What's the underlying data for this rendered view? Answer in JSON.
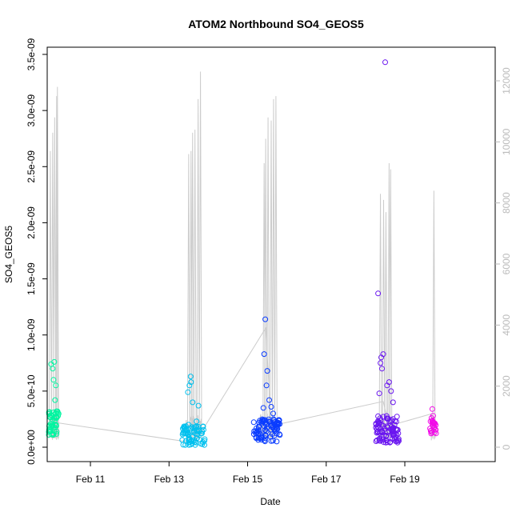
{
  "chart_data": {
    "type": "scatter",
    "title": "ATOM2 Northbound SO4_GEOS5",
    "xlabel": "Date",
    "ylabel": "SO4_GEOS5",
    "x_unit": "day of February",
    "xlim": [
      9.9,
      21.3
    ],
    "ylim": [
      0,
      3.6e-09
    ],
    "y2lim": [
      0,
      12800
    ],
    "x_ticks": [
      {
        "value": 11,
        "label": "Feb 11"
      },
      {
        "value": 13,
        "label": "Feb 13"
      },
      {
        "value": 15,
        "label": "Feb 15"
      },
      {
        "value": 17,
        "label": "Feb 17"
      },
      {
        "value": 19,
        "label": "Feb 19"
      }
    ],
    "y_ticks": [
      {
        "value": 0,
        "label": "0.0e+00"
      },
      {
        "value": 5e-10,
        "label": "5.0e-10"
      },
      {
        "value": 1e-09,
        "label": "1.0e-09"
      },
      {
        "value": 1.5e-09,
        "label": "1.5e-09"
      },
      {
        "value": 2e-09,
        "label": "2.0e-09"
      },
      {
        "value": 2.5e-09,
        "label": "2.5e-09"
      },
      {
        "value": 3e-09,
        "label": "3.0e-09"
      },
      {
        "value": 3.5e-09,
        "label": "3.5e-09"
      }
    ],
    "y2_ticks": [
      {
        "value": 0,
        "label": "0"
      },
      {
        "value": 2000,
        "label": "2000"
      },
      {
        "value": 4000,
        "label": "4000"
      },
      {
        "value": 6000,
        "label": "6000"
      },
      {
        "value": 8000,
        "label": "8000"
      },
      {
        "value": 10000,
        "label": "10000"
      },
      {
        "value": 12000,
        "label": "12000"
      }
    ],
    "altitude_color": "#cccccc",
    "clusters": [
      {
        "center": 10.08,
        "spread": 0.14,
        "color": "#00f5a0",
        "n": 48,
        "base": 2.2e-10,
        "var": 1.2e-10,
        "extra": [
          [
            10.0,
            7.4e-10
          ],
          [
            10.04,
            7e-10
          ],
          [
            10.08,
            7.6e-10
          ],
          [
            10.06,
            6e-10
          ],
          [
            10.12,
            5.5e-10
          ],
          [
            10.1,
            4.2e-10
          ],
          [
            10.14,
            3.2e-10
          ]
        ]
      },
      {
        "center": 13.62,
        "spread": 0.3,
        "color": "#00c0ee",
        "n": 72,
        "base": 1e-10,
        "var": 9e-11,
        "extra": [
          [
            13.55,
            6.3e-10
          ],
          [
            13.56,
            5.8e-10
          ],
          [
            13.52,
            5.5e-10
          ],
          [
            13.48,
            4.9e-10
          ],
          [
            13.6,
            4e-10
          ],
          [
            13.75,
            3.7e-10
          ],
          [
            13.7,
            2.3e-10
          ],
          [
            13.5,
            2e-10
          ]
        ]
      },
      {
        "center": 15.5,
        "spread": 0.35,
        "color": "#0a3cff",
        "n": 90,
        "base": 1.5e-10,
        "var": 1e-10,
        "extra": [
          [
            15.45,
            1.14e-09
          ],
          [
            15.42,
            8.3e-10
          ],
          [
            15.5,
            6.8e-10
          ],
          [
            15.48,
            5.5e-10
          ],
          [
            15.55,
            4.2e-10
          ],
          [
            15.6,
            3.6e-10
          ],
          [
            15.4,
            3.5e-10
          ],
          [
            15.65,
            3e-10
          ]
        ]
      },
      {
        "center": 18.55,
        "spread": 0.3,
        "color": "#6a16f0",
        "n": 95,
        "base": 1.6e-10,
        "var": 1.2e-10,
        "extra": [
          [
            18.5,
            3.43e-09
          ],
          [
            18.32,
            1.37e-09
          ],
          [
            18.4,
            8e-10
          ],
          [
            18.45,
            8.3e-10
          ],
          [
            18.38,
            7.5e-10
          ],
          [
            18.42,
            7e-10
          ],
          [
            18.6,
            5.8e-10
          ],
          [
            18.55,
            5.5e-10
          ],
          [
            18.65,
            5e-10
          ],
          [
            18.35,
            4.8e-10
          ],
          [
            18.7,
            4e-10
          ]
        ]
      },
      {
        "center": 19.72,
        "spread": 0.08,
        "color": "#f20ae8",
        "n": 22,
        "base": 1.8e-10,
        "var": 6e-11,
        "extra": [
          [
            19.7,
            3.4e-10
          ],
          [
            19.72,
            2.8e-10
          ],
          [
            19.68,
            2.6e-10
          ]
        ]
      }
    ],
    "altitude_spikes": [
      {
        "cluster": 0,
        "peaks": [
          [
            9.98,
            9.7,
            9700
          ],
          [
            10.04,
            10.3,
            10300
          ],
          [
            10.09,
            10.8,
            10800
          ],
          [
            10.14,
            11.5,
            11500
          ],
          [
            10.16,
            11.8,
            11800
          ]
        ]
      },
      {
        "cluster": 1,
        "peaks": [
          [
            13.5,
            9.6,
            9600
          ],
          [
            13.56,
            9.7,
            9700
          ],
          [
            13.6,
            10.3,
            10300
          ],
          [
            13.66,
            10.4,
            10400
          ],
          [
            13.74,
            11.4,
            11400
          ],
          [
            13.8,
            12.3,
            12300
          ]
        ]
      },
      {
        "cluster": 2,
        "peaks": [
          [
            15.42,
            9.3,
            9300
          ],
          [
            15.46,
            10.1,
            10100
          ],
          [
            15.52,
            10.8,
            10800
          ],
          [
            15.6,
            10.7,
            10700
          ],
          [
            15.66,
            11.4,
            11400
          ],
          [
            15.72,
            11.5,
            11500
          ]
        ]
      },
      {
        "cluster": 3,
        "peaks": [
          [
            18.38,
            8.3,
            8300
          ],
          [
            18.46,
            8.1,
            8100
          ],
          [
            18.52,
            7.7,
            7700
          ],
          [
            18.6,
            9.3,
            9300
          ],
          [
            18.64,
            9.1,
            9100
          ]
        ]
      },
      {
        "cluster": 4,
        "peaks": [
          [
            19.74,
            8.4,
            8400
          ]
        ]
      }
    ],
    "connector_line": [
      [
        10.16,
        800
      ],
      [
        13.62,
        150
      ],
      [
        13.8,
        450
      ],
      [
        15.46,
        3900
      ],
      [
        15.6,
        700
      ],
      [
        18.45,
        1500
      ],
      [
        18.6,
        700
      ],
      [
        19.7,
        1100
      ]
    ]
  }
}
